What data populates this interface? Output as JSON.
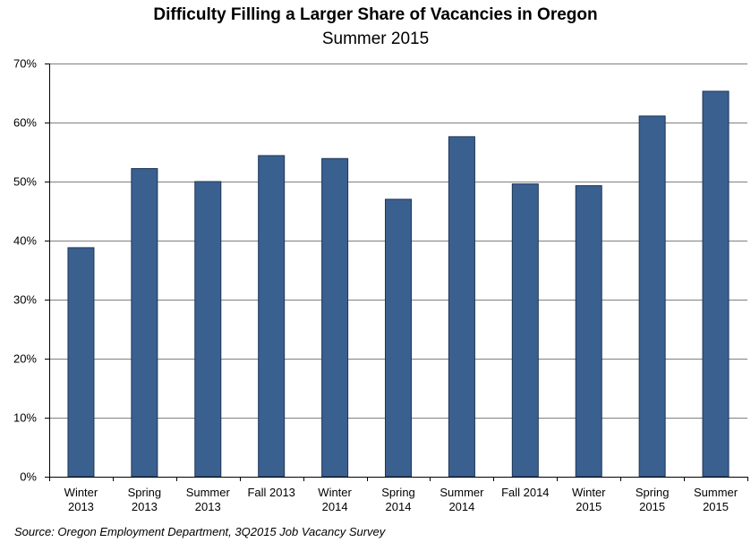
{
  "chart_data": {
    "type": "bar",
    "title": "Difficulty Filling a Larger Share of Vacancies in Oregon",
    "subtitle": "Summer 2015",
    "categories": [
      [
        "Winter",
        "2013"
      ],
      [
        "Spring",
        "2013"
      ],
      [
        "Summer",
        "2013"
      ],
      [
        "Fall 2013"
      ],
      [
        "Winter",
        "2014"
      ],
      [
        "Spring",
        "2014"
      ],
      [
        "Summer",
        "2014"
      ],
      [
        "Fall 2014"
      ],
      [
        "Winter",
        "2015"
      ],
      [
        "Spring",
        "2015"
      ],
      [
        "Summer",
        "2015"
      ]
    ],
    "values": [
      38.8,
      52.2,
      50.0,
      54.4,
      53.9,
      47.0,
      57.6,
      49.6,
      49.3,
      61.1,
      65.3
    ],
    "ylim": [
      0,
      70
    ],
    "yticks": [
      0,
      10,
      20,
      30,
      40,
      50,
      60,
      70
    ],
    "ytick_labels": [
      "0%",
      "10%",
      "20%",
      "30%",
      "40%",
      "50%",
      "60%",
      "70%"
    ],
    "xlabel": "",
    "ylabel": "",
    "grid": true,
    "bar_color": "#3a6090",
    "source": "Source: Oregon Employment Department, 3Q2015 Job Vacancy Survey"
  }
}
